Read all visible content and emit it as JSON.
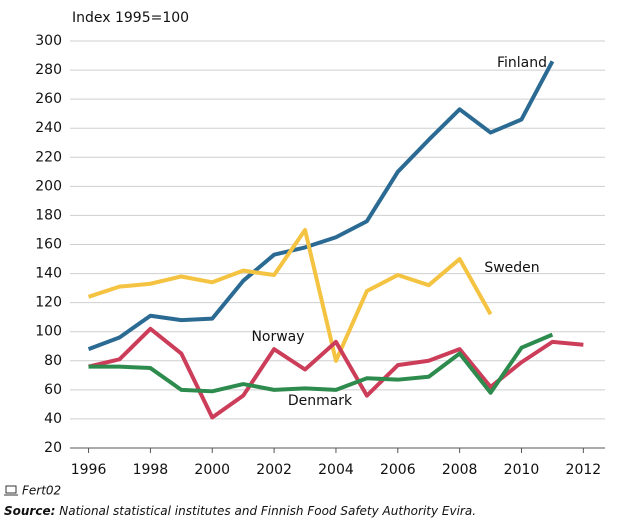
{
  "chart_data": {
    "type": "line",
    "y_axis_label": "Index 1995=100",
    "x": [
      1996,
      1997,
      1998,
      1999,
      2000,
      2001,
      2002,
      2003,
      2004,
      2005,
      2006,
      2007,
      2008,
      2009,
      2010,
      2011,
      2012
    ],
    "series": [
      {
        "name": "Finland",
        "color": "#2a6a93",
        "values": [
          88,
          96,
          111,
          108,
          109,
          135,
          153,
          158,
          165,
          176,
          210,
          232,
          253,
          237,
          246,
          286,
          null
        ]
      },
      {
        "name": "Sweden",
        "color": "#f5c342",
        "values": [
          124,
          131,
          133,
          138,
          134,
          142,
          139,
          170,
          80,
          128,
          139,
          132,
          150,
          112,
          null,
          null,
          null
        ]
      },
      {
        "name": "Norway",
        "color": "#cc3d5a",
        "values": [
          76,
          81,
          102,
          85,
          41,
          56,
          88,
          74,
          93,
          56,
          77,
          80,
          88,
          62,
          79,
          93,
          91
        ]
      },
      {
        "name": "Denmark",
        "color": "#2e8b4e",
        "values": [
          76,
          76,
          75,
          60,
          59,
          64,
          60,
          61,
          60,
          68,
          67,
          69,
          85,
          58,
          89,
          98,
          null
        ]
      }
    ],
    "xlim": [
      1995.4,
      2012.7
    ],
    "xticks": [
      1996,
      1998,
      2000,
      2002,
      2004,
      2006,
      2008,
      2010,
      2012
    ],
    "ylim": [
      20,
      300
    ],
    "yticks": [
      20,
      40,
      60,
      80,
      100,
      120,
      140,
      160,
      180,
      200,
      220,
      240,
      260,
      280,
      300
    ],
    "grid": true,
    "footnote": "Fert02",
    "source_label": "Source:",
    "source": "National statistical institutes and Finnish Food Safety Authority Evira."
  }
}
